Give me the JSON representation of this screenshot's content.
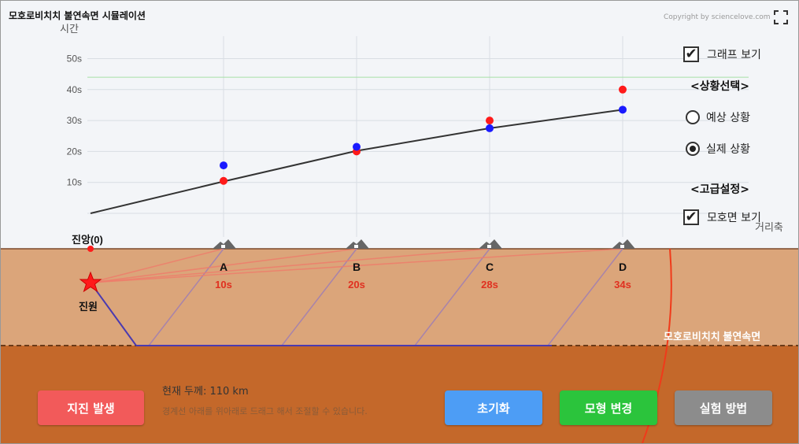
{
  "app": {
    "title": "모호로비치치 불연속면 시뮬레이션",
    "copyright": "Copyright by sciencelove.com"
  },
  "icons": {
    "fullscreen": "fullscreen-icon",
    "seismometer": "seismometer-icon",
    "epicenter": "star-icon"
  },
  "controls": {
    "show_graph": {
      "label": "그래프 보기",
      "checked": true
    },
    "situation_heading": "<상황선택>",
    "situations": [
      {
        "label": "예상 상황",
        "selected": false
      },
      {
        "label": "실제 상황",
        "selected": true
      }
    ],
    "advanced_heading": "<고급설정>",
    "show_moho": {
      "label": "모호면 보기",
      "checked": true
    }
  },
  "chart_data": {
    "type": "scatter",
    "ylabel": "시간",
    "xlabel": "거리축",
    "yticks": [
      "10s",
      "20s",
      "30s",
      "40s",
      "50s"
    ],
    "ylim": [
      0,
      50
    ],
    "x": [
      "A",
      "B",
      "C",
      "D"
    ],
    "series": [
      {
        "values": [
          10.5,
          20,
          30,
          40
        ],
        "color": "#ff1a1a"
      },
      {
        "values": [
          15.5,
          21.5,
          27.5,
          33.5
        ],
        "color": "#1a1aff"
      }
    ],
    "reference_line": 44,
    "colors": {
      "line": "#333333",
      "grid": "#d8dde3",
      "reference": "#a6e0a6"
    }
  },
  "scene": {
    "epicenter_label": "진앙(0)",
    "focus_label": "진원",
    "moho_label": "모호로비치치 불연속면",
    "stations": [
      {
        "name": "A",
        "time": "10s"
      },
      {
        "name": "B",
        "time": "20s"
      },
      {
        "name": "C",
        "time": "28s"
      },
      {
        "name": "D",
        "time": "34s"
      }
    ],
    "colors": {
      "crust": "#dba57a",
      "mantle": "#c4682a",
      "time_text": "#e03020"
    }
  },
  "footer": {
    "thickness_label": "현재 두께: 110 km",
    "drag_hint": "경계선 아래를 위아래로 드래그 해서 조절할 수 있습니다."
  },
  "buttons": {
    "quake": {
      "label": "지진 발생",
      "color": "#f25a5a"
    },
    "reset": {
      "label": "초기화",
      "color": "#4d9df5"
    },
    "change_model": {
      "label": "모형 변경",
      "color": "#2bc43c"
    },
    "howto": {
      "label": "실험 방법",
      "color": "#8c8c8c"
    }
  }
}
